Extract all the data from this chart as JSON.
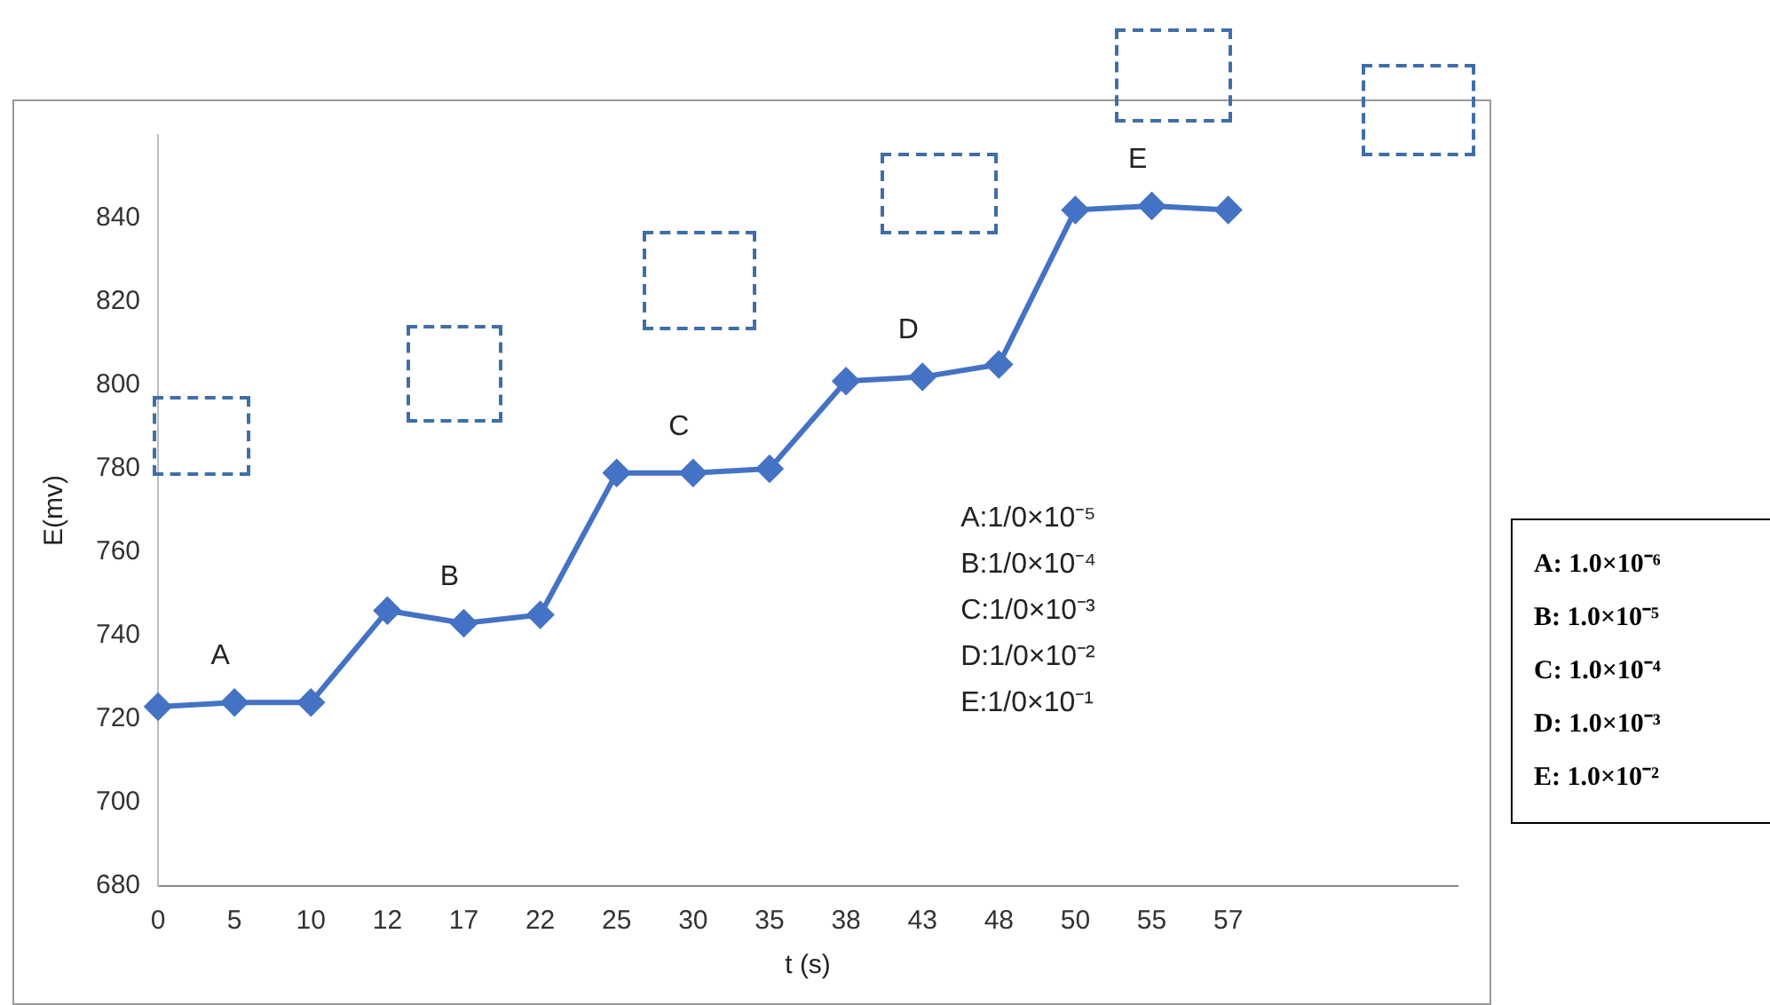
{
  "chart_data": {
    "type": "line",
    "xlabel": "t (s)",
    "ylabel": "E(mv)",
    "categories": [
      "0",
      "5",
      "10",
      "12",
      "17",
      "22",
      "25",
      "30",
      "35",
      "38",
      "43",
      "48",
      "50",
      "55",
      "57",
      null,
      null,
      null
    ],
    "series": [
      {
        "color": "#4472c4",
        "values": [
          723,
          724,
          724,
          746,
          743,
          745,
          779,
          779,
          780,
          801,
          802,
          805,
          842,
          843,
          842,
          null,
          null,
          null
        ]
      }
    ],
    "ylim": [
      680,
      860
    ],
    "yticks": [
      680,
      700,
      720,
      740,
      760,
      780,
      800,
      820,
      840
    ],
    "grid": false,
    "legend": false,
    "marker": "diamond",
    "line_style": "solid",
    "annotations": [
      {
        "text": "A",
        "x": "5",
        "y": 724
      },
      {
        "text": "B",
        "x": "17",
        "y": 743
      },
      {
        "text": "C",
        "x": "30",
        "y": 779
      },
      {
        "text": "D",
        "x": "43",
        "y": 802
      },
      {
        "text": "E",
        "x": "55",
        "y": 843
      },
      "A:1/0×10⁻⁵",
      "B:1/0×10⁻⁴",
      "C:1/0×10⁻³",
      "D:1/0×10⁻²",
      "E:1/0×10⁻¹",
      "A: 1.0×10⁻⁶",
      "B: 1.0×10⁻⁵",
      "C: 1.0×10⁻⁴",
      "D: 1.0×10⁻³",
      "E: 1.0×10⁻²"
    ]
  }
}
